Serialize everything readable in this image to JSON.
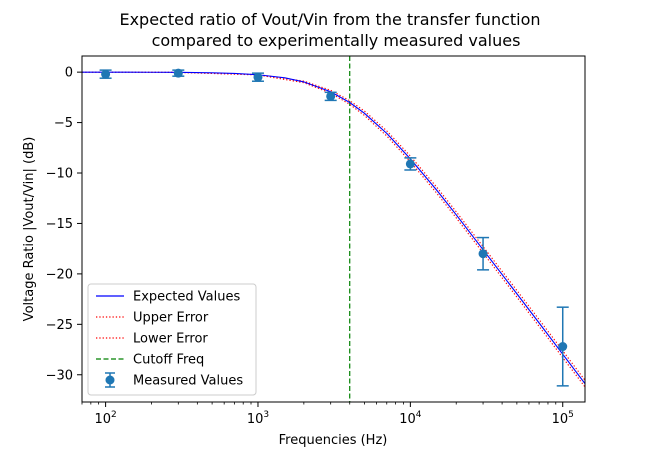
{
  "chart_data": {
    "type": "line",
    "title_line1": "Expected ratio of Vout/Vin from the transfer function",
    "title_line2": "compared to experimentally measured values",
    "xlabel": "Frequencies (Hz)",
    "ylabel": "Voltage Ratio |Vout/Vin| (dB)",
    "x_scale": "log",
    "xlim": [
      70,
      140000
    ],
    "ylim": [
      -32.7,
      1.6
    ],
    "x_ticks": [
      {
        "value": 100,
        "base": "10",
        "exp": "2"
      },
      {
        "value": 1000,
        "base": "10",
        "exp": "3"
      },
      {
        "value": 10000,
        "base": "10",
        "exp": "4"
      },
      {
        "value": 100000,
        "base": "10",
        "exp": "5"
      }
    ],
    "y_ticks": [
      {
        "value": 0,
        "label": "0"
      },
      {
        "value": -5,
        "label": "−5"
      },
      {
        "value": -10,
        "label": "−10"
      },
      {
        "value": -15,
        "label": "−15"
      },
      {
        "value": -20,
        "label": "−20"
      },
      {
        "value": -25,
        "label": "−25"
      },
      {
        "value": -30,
        "label": "−30"
      }
    ],
    "grid": false,
    "legend_position": "bottom-left",
    "legend": [
      {
        "label": "Expected Values",
        "style": "solid",
        "color": "#0000ff"
      },
      {
        "label": "Upper Error",
        "style": "dotted",
        "color": "#ff0000"
      },
      {
        "label": "Lower Error",
        "style": "dotted",
        "color": "#ff0000"
      },
      {
        "label": "Cutoff Freq",
        "style": "dashed",
        "color": "#008000"
      },
      {
        "label": "Measured Values",
        "style": "errorbar",
        "color": "#1f77b4"
      }
    ],
    "cutoff_frequency": 4000,
    "expected_curve": {
      "x": [
        70,
        100,
        200,
        300,
        500,
        700,
        1000,
        1500,
        2000,
        3000,
        4000,
        5000,
        7000,
        10000,
        15000,
        20000,
        30000,
        50000,
        70000,
        100000,
        140000
      ],
      "y": [
        0.0,
        0.0,
        -0.01,
        -0.02,
        -0.07,
        -0.13,
        -0.26,
        -0.56,
        -0.97,
        -1.94,
        -3.01,
        -4.08,
        -6.07,
        -8.6,
        -11.76,
        -14.14,
        -17.6,
        -21.97,
        -24.87,
        -27.96,
        -30.88
      ]
    },
    "upper_error": {
      "x": [
        70,
        100,
        300,
        1000,
        2000,
        3000,
        4000,
        5000,
        7000,
        10000,
        15000,
        20000,
        30000,
        50000,
        70000,
        100000,
        140000
      ],
      "y": [
        0.0,
        0.0,
        -0.02,
        -0.24,
        -0.89,
        -1.8,
        -2.83,
        -3.86,
        -5.82,
        -8.32,
        -11.46,
        -13.84,
        -17.29,
        -21.64,
        -24.53,
        -27.62,
        -30.55
      ]
    },
    "lower_error": {
      "x": [
        70,
        100,
        300,
        1000,
        2000,
        3000,
        4000,
        5000,
        7000,
        10000,
        15000,
        20000,
        30000,
        50000,
        70000,
        100000,
        140000
      ],
      "y": [
        0.0,
        0.0,
        -0.03,
        -0.28,
        -1.05,
        -2.08,
        -3.19,
        -4.3,
        -6.33,
        -8.88,
        -12.06,
        -14.45,
        -17.92,
        -22.3,
        -25.21,
        -28.3,
        -31.21
      ]
    },
    "measured": {
      "x": [
        100,
        300,
        1000,
        3000,
        10000,
        30000,
        100000
      ],
      "y": [
        -0.2,
        -0.1,
        -0.5,
        -2.4,
        -9.1,
        -18.0,
        -27.2
      ],
      "yerr": [
        0.4,
        0.3,
        0.4,
        0.4,
        0.6,
        1.6,
        3.9
      ]
    },
    "colors": {
      "expected": "#0000ff",
      "error": "#ff0000",
      "cutoff": "#008000",
      "measured": "#1f77b4"
    }
  }
}
